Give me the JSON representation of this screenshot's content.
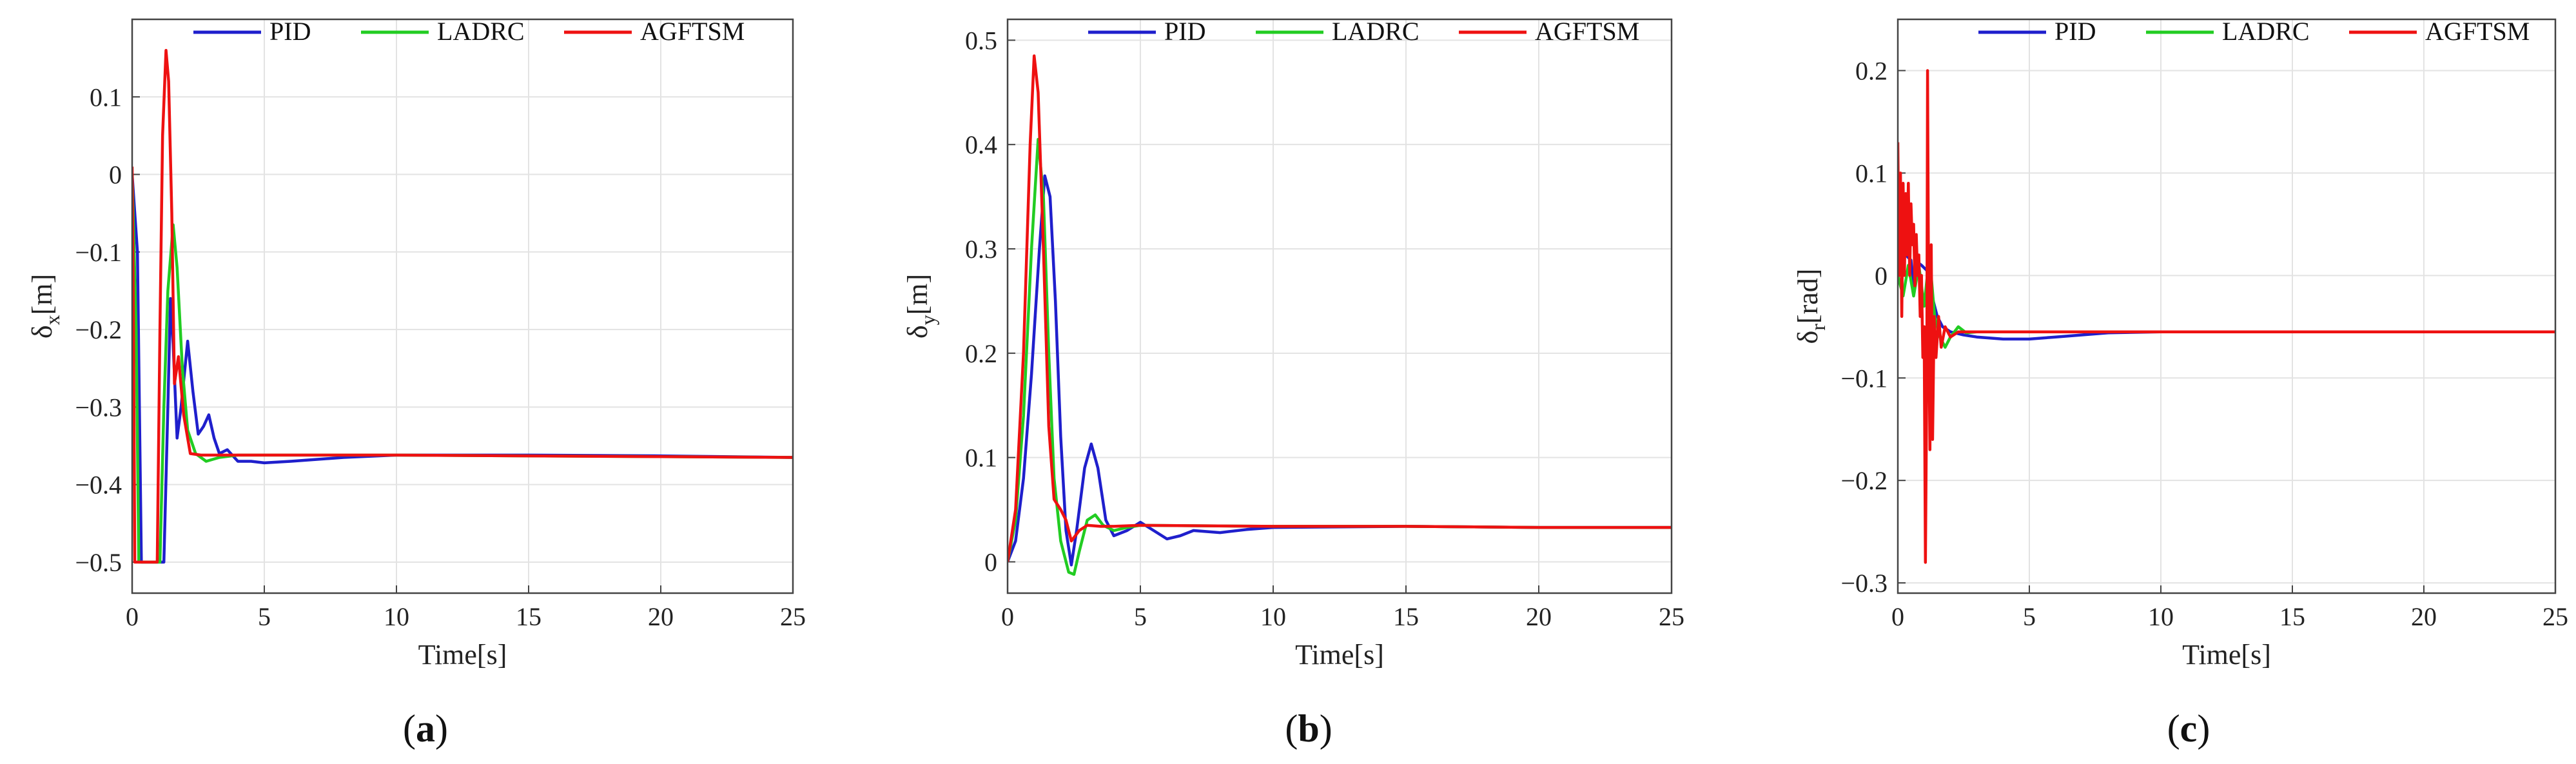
{
  "chart_data": [
    {
      "type": "line",
      "xlabel": "Time[s]",
      "ylabel": "δx[m]",
      "ylabel_main": "δ",
      "ylabel_sub": "x",
      "ylabel_unit": "[m]",
      "xlim": [
        0,
        25
      ],
      "ylim": [
        -0.54,
        0.2
      ],
      "x_ticks": [
        0,
        5,
        10,
        15,
        20,
        25
      ],
      "y_ticks": [
        -0.5,
        -0.4,
        -0.3,
        -0.2,
        -0.1,
        0,
        0.1
      ],
      "y_tick_labels": [
        "−0.5",
        "−0.4",
        "−0.3",
        "−0.2",
        "−0.1",
        "0",
        "0.1"
      ],
      "grid": true,
      "legend_position": "top",
      "caption_letter": "a",
      "series": [
        {
          "name": "PID",
          "color": "#1f1fcc",
          "points": [
            [
              0,
              0
            ],
            [
              0.2,
              -0.1
            ],
            [
              0.35,
              -0.5
            ],
            [
              1.2,
              -0.5
            ],
            [
              1.35,
              -0.3
            ],
            [
              1.45,
              -0.16
            ],
            [
              1.55,
              -0.22
            ],
            [
              1.7,
              -0.34
            ],
            [
              1.85,
              -0.3
            ],
            [
              2.1,
              -0.215
            ],
            [
              2.3,
              -0.28
            ],
            [
              2.5,
              -0.335
            ],
            [
              2.7,
              -0.325
            ],
            [
              2.9,
              -0.31
            ],
            [
              3.1,
              -0.34
            ],
            [
              3.3,
              -0.36
            ],
            [
              3.6,
              -0.355
            ],
            [
              4,
              -0.37
            ],
            [
              4.5,
              -0.37
            ],
            [
              5,
              -0.372
            ],
            [
              6,
              -0.37
            ],
            [
              8,
              -0.365
            ],
            [
              10,
              -0.362
            ],
            [
              15,
              -0.362
            ],
            [
              20,
              -0.363
            ],
            [
              25,
              -0.365
            ]
          ]
        },
        {
          "name": "LADRC",
          "color": "#22cc22",
          "points": [
            [
              0,
              0
            ],
            [
              0.15,
              -0.2
            ],
            [
              0.25,
              -0.5
            ],
            [
              1.05,
              -0.5
            ],
            [
              1.2,
              -0.3
            ],
            [
              1.35,
              -0.15
            ],
            [
              1.55,
              -0.065
            ],
            [
              1.7,
              -0.12
            ],
            [
              1.9,
              -0.25
            ],
            [
              2.1,
              -0.33
            ],
            [
              2.4,
              -0.36
            ],
            [
              2.8,
              -0.37
            ],
            [
              3.3,
              -0.365
            ],
            [
              4,
              -0.362
            ],
            [
              5,
              -0.362
            ],
            [
              10,
              -0.362
            ],
            [
              15,
              -0.363
            ],
            [
              20,
              -0.364
            ],
            [
              25,
              -0.365
            ]
          ]
        },
        {
          "name": "AGFTSM",
          "color": "#ee1111",
          "points": [
            [
              0,
              0.01
            ],
            [
              0.05,
              -0.2
            ],
            [
              0.1,
              -0.5
            ],
            [
              0.95,
              -0.5
            ],
            [
              1.05,
              -0.2
            ],
            [
              1.15,
              0.05
            ],
            [
              1.28,
              0.16
            ],
            [
              1.38,
              0.12
            ],
            [
              1.5,
              -0.05
            ],
            [
              1.6,
              -0.27
            ],
            [
              1.75,
              -0.235
            ],
            [
              1.95,
              -0.31
            ],
            [
              2.2,
              -0.36
            ],
            [
              2.6,
              -0.362
            ],
            [
              3,
              -0.362
            ],
            [
              5,
              -0.362
            ],
            [
              10,
              -0.362
            ],
            [
              15,
              -0.363
            ],
            [
              20,
              -0.364
            ],
            [
              25,
              -0.365
            ]
          ]
        }
      ]
    },
    {
      "type": "line",
      "xlabel": "Time[s]",
      "ylabel": "δy[m]",
      "ylabel_main": "δ",
      "ylabel_sub": "y",
      "ylabel_unit": "[m]",
      "xlim": [
        0,
        25
      ],
      "ylim": [
        -0.03,
        0.52
      ],
      "x_ticks": [
        0,
        5,
        10,
        15,
        20,
        25
      ],
      "y_ticks": [
        0,
        0.1,
        0.2,
        0.3,
        0.4,
        0.5
      ],
      "y_tick_labels": [
        "0",
        "0.1",
        "0.2",
        "0.3",
        "0.4",
        "0.5"
      ],
      "grid": true,
      "legend_position": "top",
      "caption_letter": "b",
      "series": [
        {
          "name": "PID",
          "color": "#1f1fcc",
          "points": [
            [
              0,
              0
            ],
            [
              0.3,
              0.02
            ],
            [
              0.6,
              0.08
            ],
            [
              0.9,
              0.18
            ],
            [
              1.2,
              0.3
            ],
            [
              1.4,
              0.37
            ],
            [
              1.6,
              0.35
            ],
            [
              1.8,
              0.25
            ],
            [
              2,
              0.12
            ],
            [
              2.2,
              0.03
            ],
            [
              2.4,
              -0.003
            ],
            [
              2.6,
              0.03
            ],
            [
              2.9,
              0.09
            ],
            [
              3.15,
              0.113
            ],
            [
              3.4,
              0.09
            ],
            [
              3.7,
              0.04
            ],
            [
              4,
              0.025
            ],
            [
              4.5,
              0.03
            ],
            [
              5,
              0.038
            ],
            [
              5.5,
              0.03
            ],
            [
              6,
              0.022
            ],
            [
              6.5,
              0.025
            ],
            [
              7,
              0.03
            ],
            [
              8,
              0.028
            ],
            [
              9,
              0.031
            ],
            [
              10,
              0.033
            ],
            [
              15,
              0.034
            ],
            [
              20,
              0.033
            ],
            [
              25,
              0.033
            ]
          ]
        },
        {
          "name": "LADRC",
          "color": "#22cc22",
          "points": [
            [
              0,
              0
            ],
            [
              0.3,
              0.04
            ],
            [
              0.6,
              0.14
            ],
            [
              0.9,
              0.3
            ],
            [
              1.15,
              0.405
            ],
            [
              1.35,
              0.35
            ],
            [
              1.55,
              0.2
            ],
            [
              1.75,
              0.08
            ],
            [
              2,
              0.02
            ],
            [
              2.3,
              -0.01
            ],
            [
              2.5,
              -0.012
            ],
            [
              2.7,
              0.01
            ],
            [
              3,
              0.04
            ],
            [
              3.3,
              0.045
            ],
            [
              3.6,
              0.035
            ],
            [
              4,
              0.03
            ],
            [
              4.5,
              0.033
            ],
            [
              5,
              0.035
            ],
            [
              10,
              0.034
            ],
            [
              15,
              0.034
            ],
            [
              20,
              0.033
            ],
            [
              25,
              0.033
            ]
          ]
        },
        {
          "name": "AGFTSM",
          "color": "#ee1111",
          "points": [
            [
              0,
              0
            ],
            [
              0.3,
              0.05
            ],
            [
              0.6,
              0.2
            ],
            [
              0.85,
              0.4
            ],
            [
              1.0,
              0.485
            ],
            [
              1.15,
              0.45
            ],
            [
              1.35,
              0.3
            ],
            [
              1.55,
              0.13
            ],
            [
              1.75,
              0.06
            ],
            [
              2,
              0.05
            ],
            [
              2.2,
              0.04
            ],
            [
              2.4,
              0.02
            ],
            [
              2.7,
              0.03
            ],
            [
              3,
              0.035
            ],
            [
              3.5,
              0.034
            ],
            [
              4,
              0.034
            ],
            [
              5,
              0.035
            ],
            [
              10,
              0.034
            ],
            [
              15,
              0.034
            ],
            [
              20,
              0.033
            ],
            [
              25,
              0.033
            ]
          ]
        }
      ]
    },
    {
      "type": "line",
      "xlabel": "Time[s]",
      "ylabel": "δr[rad]",
      "ylabel_main": "δ",
      "ylabel_sub": "r",
      "ylabel_unit": "[rad]",
      "xlim": [
        0,
        25
      ],
      "ylim": [
        -0.31,
        0.25
      ],
      "x_ticks": [
        0,
        5,
        10,
        15,
        20,
        25
      ],
      "y_ticks": [
        -0.3,
        -0.2,
        -0.1,
        0,
        0.1,
        0.2
      ],
      "y_tick_labels": [
        "−0.3",
        "−0.2",
        "−0.1",
        "0",
        "0.1",
        "0.2"
      ],
      "grid": true,
      "legend_position": "top",
      "caption_letter": "c",
      "series": [
        {
          "name": "PID",
          "color": "#1f1fcc",
          "points": [
            [
              0,
              0.02
            ],
            [
              0.3,
              0.02
            ],
            [
              0.5,
              0.015
            ],
            [
              0.6,
              -0.015
            ],
            [
              0.65,
              0.015
            ],
            [
              0.9,
              0.01
            ],
            [
              1.1,
              0.005
            ],
            [
              1.3,
              -0.02
            ],
            [
              1.5,
              -0.04
            ],
            [
              1.7,
              -0.05
            ],
            [
              2,
              -0.055
            ],
            [
              2.5,
              -0.058
            ],
            [
              3,
              -0.06
            ],
            [
              4,
              -0.062
            ],
            [
              5,
              -0.062
            ],
            [
              6,
              -0.06
            ],
            [
              7,
              -0.058
            ],
            [
              8,
              -0.056
            ],
            [
              10,
              -0.055
            ],
            [
              15,
              -0.055
            ],
            [
              20,
              -0.055
            ],
            [
              25,
              -0.055
            ]
          ]
        },
        {
          "name": "LADRC",
          "color": "#22cc22",
          "points": [
            [
              0,
              0
            ],
            [
              0.2,
              -0.02
            ],
            [
              0.4,
              0.01
            ],
            [
              0.6,
              -0.02
            ],
            [
              0.8,
              0.01
            ],
            [
              1,
              -0.03
            ],
            [
              1.2,
              0.02
            ],
            [
              1.4,
              -0.04
            ],
            [
              1.6,
              -0.06
            ],
            [
              1.8,
              -0.07
            ],
            [
              2,
              -0.06
            ],
            [
              2.3,
              -0.05
            ],
            [
              2.6,
              -0.056
            ],
            [
              3,
              -0.055
            ],
            [
              4,
              -0.055
            ],
            [
              10,
              -0.055
            ],
            [
              15,
              -0.055
            ],
            [
              20,
              -0.055
            ],
            [
              25,
              -0.055
            ]
          ]
        },
        {
          "name": "AGFTSM",
          "color": "#ee1111",
          "points": [
            [
              0,
              0.13
            ],
            [
              0.05,
              0.0
            ],
            [
              0.1,
              0.1
            ],
            [
              0.15,
              -0.04
            ],
            [
              0.2,
              0.09
            ],
            [
              0.25,
              0.0
            ],
            [
              0.3,
              0.08
            ],
            [
              0.35,
              0.02
            ],
            [
              0.4,
              0.09
            ],
            [
              0.45,
              0.0
            ],
            [
              0.5,
              0.07
            ],
            [
              0.55,
              0.03
            ],
            [
              0.6,
              0.05
            ],
            [
              0.65,
              -0.01
            ],
            [
              0.7,
              0.04
            ],
            [
              0.75,
              0.0
            ],
            [
              0.8,
              0.02
            ],
            [
              0.85,
              -0.04
            ],
            [
              0.9,
              0.0
            ],
            [
              0.95,
              -0.08
            ],
            [
              1.0,
              -0.05
            ],
            [
              1.05,
              -0.28
            ],
            [
              1.1,
              -0.1
            ],
            [
              1.13,
              0.2
            ],
            [
              1.17,
              -0.02
            ],
            [
              1.22,
              -0.17
            ],
            [
              1.27,
              0.03
            ],
            [
              1.32,
              -0.16
            ],
            [
              1.38,
              -0.04
            ],
            [
              1.45,
              -0.08
            ],
            [
              1.55,
              -0.04
            ],
            [
              1.65,
              -0.07
            ],
            [
              1.8,
              -0.05
            ],
            [
              2,
              -0.06
            ],
            [
              2.3,
              -0.055
            ],
            [
              3,
              -0.055
            ],
            [
              5,
              -0.055
            ],
            [
              10,
              -0.055
            ],
            [
              15,
              -0.055
            ],
            [
              20,
              -0.055
            ],
            [
              25,
              -0.055
            ]
          ]
        }
      ]
    }
  ]
}
